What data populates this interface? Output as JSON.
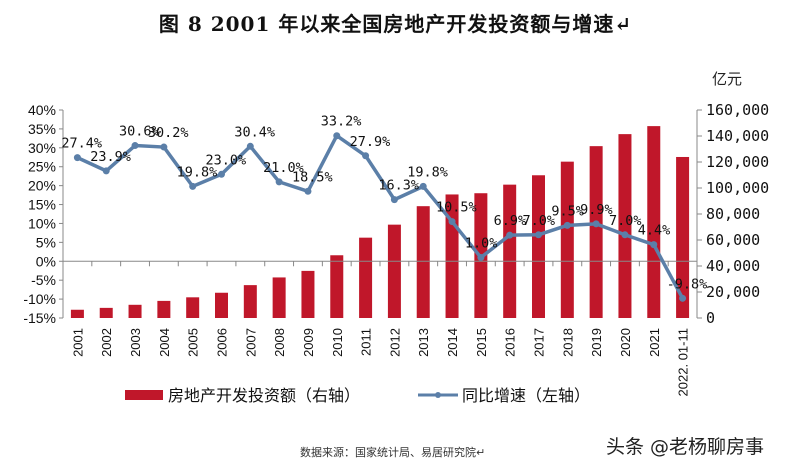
{
  "title": "图 8   2001 年以来全国房地产开发投资额与增速↵",
  "source": "数据来源：国家统计局、易居研究院↵",
  "watermark": "头条 @老杨聊房事",
  "chart_data": {
    "type": "bar+line",
    "title": "图 8   2001 年以来全国房地产开发投资额与增速",
    "right_axis_unit": "亿元",
    "categories": [
      "2001",
      "2002",
      "2003",
      "2004",
      "2005",
      "2006",
      "2007",
      "2008",
      "2009",
      "2010",
      "2011",
      "2012",
      "2013",
      "2014",
      "2015",
      "2016",
      "2017",
      "2018",
      "2019",
      "2020",
      "2021",
      "2022. 01-11"
    ],
    "series": [
      {
        "name": "房地产开发投资额（右轴）",
        "type": "bar",
        "axis": "right",
        "color": "#c0172a",
        "values": [
          6344,
          7791,
          10154,
          13158,
          15909,
          19423,
          25289,
          31203,
          36242,
          48259,
          61797,
          71804,
          86013,
          95036,
          95979,
          102581,
          109799,
          120264,
          132194,
          141443,
          147602,
          123863
        ]
      },
      {
        "name": "同比增速（左轴）",
        "type": "line",
        "axis": "left",
        "color": "#5b7fa8",
        "values": [
          27.4,
          23.9,
          30.6,
          30.2,
          19.8,
          23.0,
          30.4,
          21.0,
          18.5,
          33.2,
          27.9,
          16.3,
          19.8,
          10.5,
          1.0,
          6.9,
          7.0,
          9.5,
          9.9,
          7.0,
          4.4,
          -9.8
        ],
        "labels": [
          "27.4%",
          "23.9%",
          "30.6%",
          "30.2%",
          "19.8%",
          "23.0%",
          "30.4%",
          "21.0%",
          "18.5%",
          "33.2%",
          "27.9%",
          "16.3%",
          "19.8%",
          "10.5%",
          "1.0%",
          "6.9%",
          "7.0%",
          "9.5%",
          "9.9%",
          "7.0%",
          "4.4%",
          "-9.8%"
        ]
      }
    ],
    "left_axis": {
      "range": [
        -15,
        40
      ],
      "ticks": [
        "40%",
        "35%",
        "30%",
        "25%",
        "20%",
        "15%",
        "10%",
        "5%",
        "0%",
        "-5%",
        "-10%",
        "-15%"
      ]
    },
    "right_axis": {
      "range": [
        0,
        160000
      ],
      "ticks": [
        "160,000",
        "140,000",
        "120,000",
        "100,000",
        "80,000",
        "60,000",
        "40,000",
        "20,000",
        "0"
      ]
    },
    "grid": false,
    "legend": "bottom",
    "legend_entries": [
      "房地产开发投资额（右轴）",
      "同比增速（左轴）"
    ]
  }
}
